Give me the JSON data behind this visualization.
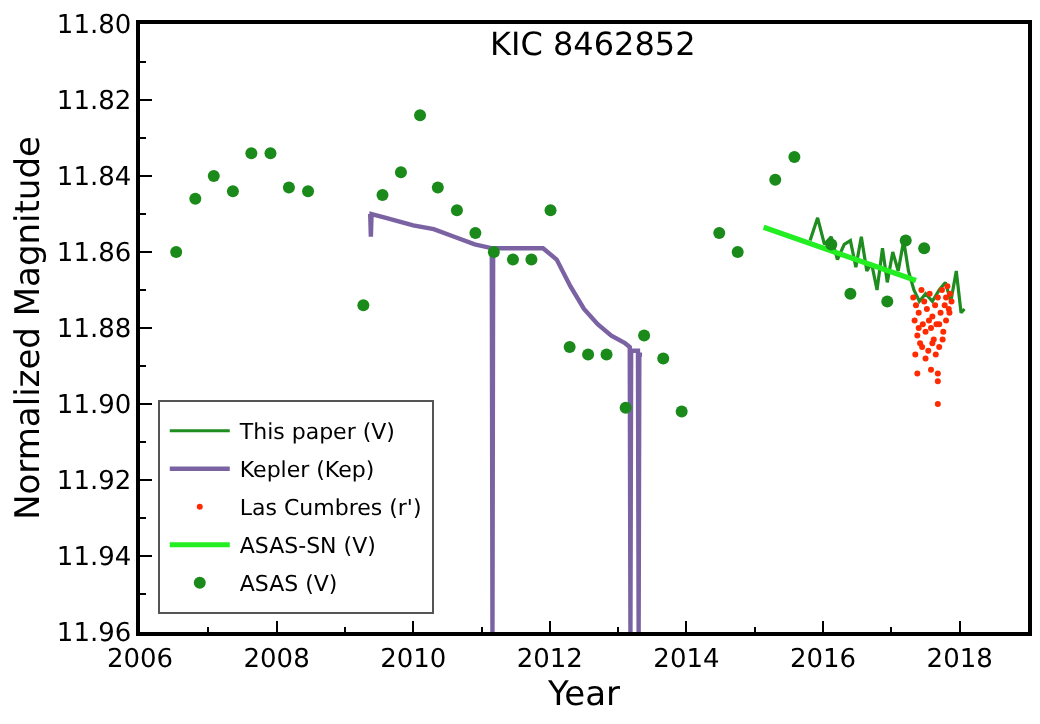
{
  "chart_data": {
    "type": "scatter",
    "title": "KIC 8462852",
    "xlabel": "Year",
    "ylabel": "Normalized Magnitude",
    "xlim": [
      2006,
      2019
    ],
    "xticks": [
      2006,
      2008,
      2010,
      2012,
      2014,
      2016,
      2018
    ],
    "ylim": [
      11.96,
      11.8
    ],
    "yticks": [
      {
        "value": 11.8,
        "label": "11.80"
      },
      {
        "value": 11.82,
        "label": "11.82"
      },
      {
        "value": 11.84,
        "label": "11.84"
      },
      {
        "value": 11.86,
        "label": "11.86"
      },
      {
        "value": 11.88,
        "label": "11.88"
      },
      {
        "value": 11.9,
        "label": "11.90"
      },
      {
        "value": 11.92,
        "label": "11.92"
      },
      {
        "value": 11.94,
        "label": "11.94"
      },
      {
        "value": 11.96,
        "label": "11.96"
      }
    ],
    "legend": "bottom left",
    "series": [
      {
        "name": "This paper (V)",
        "type": "line",
        "marker": "none",
        "color": "#1e8c1e",
        "x": [
          2015.81,
          2015.92,
          2016.02,
          2016.12,
          2016.21,
          2016.31,
          2016.4,
          2016.48,
          2016.56,
          2016.64,
          2016.71,
          2016.79,
          2016.87,
          2016.94,
          2017.02,
          2017.1,
          2017.18,
          2017.25,
          2017.33,
          2017.41,
          2017.5,
          2017.6,
          2017.7,
          2017.79,
          2017.87,
          2017.95,
          2018.02,
          2018.07
        ],
        "values": [
          11.857,
          11.851,
          11.858,
          11.856,
          11.862,
          11.858,
          11.857,
          11.864,
          11.856,
          11.865,
          11.863,
          11.87,
          11.859,
          11.868,
          11.86,
          11.865,
          11.857,
          11.865,
          11.87,
          11.873,
          11.871,
          11.873,
          11.87,
          11.868,
          11.873,
          11.865,
          11.876,
          11.875
        ]
      },
      {
        "name": "Kepler (Kep)",
        "type": "line",
        "marker": "none",
        "color": "#7a62a3",
        "x": [
          2009.37,
          2009.38,
          2009.39,
          2009.6,
          2009.8,
          2010.0,
          2010.3,
          2010.6,
          2010.9,
          2011.15,
          2011.16,
          2011.17,
          2011.5,
          2011.9,
          2012.1,
          2012.3,
          2012.5,
          2012.7,
          2012.9,
          2013.1,
          2013.17,
          2013.18,
          2013.19,
          2013.29,
          2013.3,
          2013.31,
          2013.35
        ],
        "values": [
          11.85,
          11.856,
          11.85,
          11.851,
          11.852,
          11.853,
          11.854,
          11.856,
          11.858,
          11.859,
          11.96,
          11.859,
          11.859,
          11.859,
          11.862,
          11.869,
          11.875,
          11.879,
          11.882,
          11.884,
          11.885,
          11.96,
          11.886,
          11.886,
          11.96,
          11.887,
          11.887
        ]
      },
      {
        "name": "Las Cumbres (r')",
        "marker": "circle",
        "color": "#ff2a00",
        "x": [
          2017.32,
          2017.34,
          2017.36,
          2017.38,
          2017.4,
          2017.42,
          2017.44,
          2017.46,
          2017.48,
          2017.5,
          2017.52,
          2017.54,
          2017.56,
          2017.58,
          2017.6,
          2017.62,
          2017.64,
          2017.66,
          2017.68,
          2017.7,
          2017.72,
          2017.74,
          2017.76,
          2017.78,
          2017.8,
          2017.82,
          2017.84,
          2017.86,
          2017.88,
          2017.35,
          2017.45,
          2017.55,
          2017.65,
          2017.75,
          2017.85,
          2017.4,
          2017.5,
          2017.6,
          2017.7,
          2017.8,
          2017.38,
          2017.68,
          2017.68,
          2017.68,
          2017.58
        ],
        "values": [
          11.872,
          11.878,
          11.874,
          11.882,
          11.876,
          11.884,
          11.87,
          11.879,
          11.873,
          11.881,
          11.875,
          11.886,
          11.871,
          11.88,
          11.877,
          11.883,
          11.874,
          11.879,
          11.872,
          11.885,
          11.876,
          11.87,
          11.881,
          11.874,
          11.878,
          11.869,
          11.875,
          11.871,
          11.873,
          11.887,
          11.885,
          11.878,
          11.887,
          11.883,
          11.876,
          11.88,
          11.888,
          11.884,
          11.879,
          11.872,
          11.892,
          11.892,
          11.894,
          11.9,
          11.891
        ]
      },
      {
        "name": "ASAS-SN (V)",
        "type": "line",
        "marker": "none",
        "color": "#22ee22",
        "x": [
          2015.13,
          2017.36
        ],
        "values": [
          11.8535,
          11.8675
        ]
      },
      {
        "name": "ASAS (V)",
        "marker": "circle",
        "color": "#1a8a1a",
        "x": [
          2006.53,
          2006.81,
          2007.08,
          2007.36,
          2007.63,
          2007.91,
          2008.18,
          2008.46,
          2009.27,
          2009.55,
          2009.82,
          2010.1,
          2010.36,
          2010.64,
          2010.91,
          2011.18,
          2011.46,
          2011.73,
          2012.01,
          2012.29,
          2012.56,
          2012.83,
          2013.11,
          2013.38,
          2013.66,
          2013.93,
          2014.48,
          2014.75,
          2015.3,
          2015.58,
          2016.12,
          2016.4,
          2016.94,
          2017.21,
          2017.48
        ],
        "values": [
          11.86,
          11.846,
          11.84,
          11.844,
          11.834,
          11.834,
          11.843,
          11.844,
          11.874,
          11.845,
          11.839,
          11.824,
          11.843,
          11.849,
          11.855,
          11.86,
          11.862,
          11.862,
          11.849,
          11.885,
          11.887,
          11.887,
          11.901,
          11.882,
          11.888,
          11.902,
          11.855,
          11.86,
          11.841,
          11.835,
          11.858,
          11.871,
          11.873,
          11.857,
          11.859
        ]
      }
    ]
  }
}
